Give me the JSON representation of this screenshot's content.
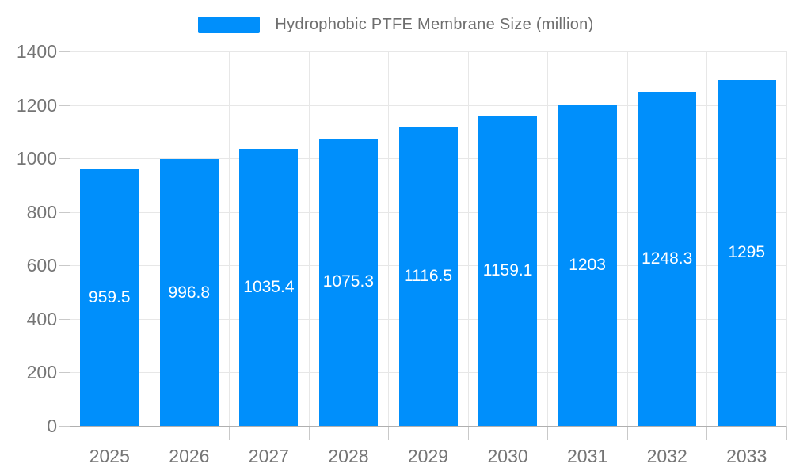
{
  "legend": {
    "items": [
      {
        "label": "Hydrophobic PTFE Membrane Size (million)",
        "color": "#008FFB"
      }
    ]
  },
  "chart_data": {
    "type": "bar",
    "title": "Hydrophobic PTFE Membrane Size (million)",
    "categories": [
      "2025",
      "2026",
      "2027",
      "2028",
      "2029",
      "2030",
      "2031",
      "2032",
      "2033"
    ],
    "series": [
      {
        "name": "Hydrophobic PTFE Membrane Size (million)",
        "values": [
          959.5,
          996.8,
          1035.4,
          1075.3,
          1116.5,
          1159.1,
          1203,
          1248.3,
          1295
        ]
      }
    ],
    "value_labels": [
      "959.5",
      "996.8",
      "1035.4",
      "1075.3",
      "1116.5",
      "1159.1",
      "1203",
      "1248.3",
      "1295"
    ],
    "xlabel": "",
    "ylabel": "",
    "ylim": [
      0,
      1400
    ],
    "ytick_step": 200,
    "ytick_labels": [
      "0",
      "200",
      "400",
      "600",
      "800",
      "1000",
      "1200",
      "1400"
    ],
    "grid": true,
    "legend_position": "top",
    "data_labels_position": "center-of-bar",
    "colors": {
      "bar": "#008FFB",
      "data_label_text": "#ffffff",
      "axis_label_text": "#757575",
      "legend_text": "#6e6e6e",
      "gridline": "#e7e7e7",
      "tick": "#c9c9c9",
      "axis_line": "#b0b0b0",
      "background": "#ffffff"
    }
  }
}
